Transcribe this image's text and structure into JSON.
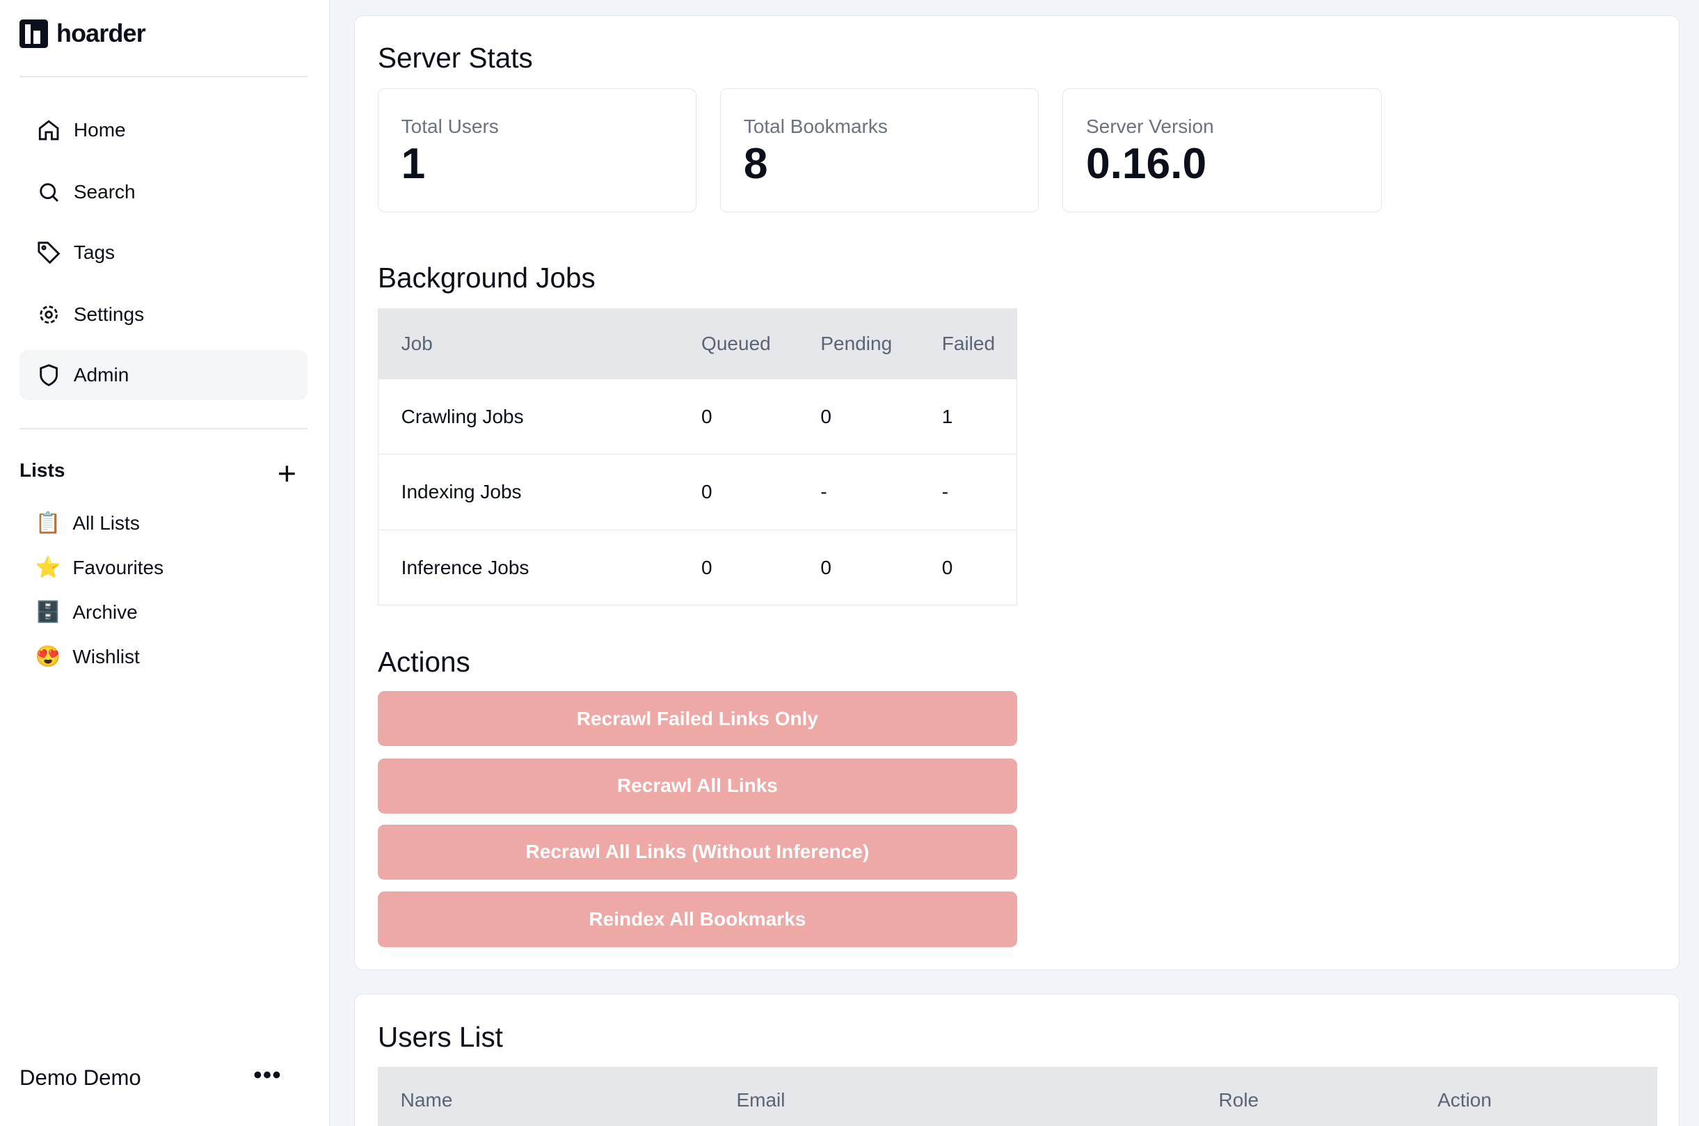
{
  "app": {
    "name": "hoarder"
  },
  "sidebar": {
    "items": [
      {
        "label": "Home",
        "icon": "home-icon"
      },
      {
        "label": "Search",
        "icon": "search-icon"
      },
      {
        "label": "Tags",
        "icon": "tag-icon"
      },
      {
        "label": "Settings",
        "icon": "gear-icon"
      },
      {
        "label": "Admin",
        "icon": "shield-icon",
        "active": true
      }
    ],
    "lists_title": "Lists",
    "add_icon": "plus-icon",
    "lists": [
      {
        "label": "All Lists",
        "emoji": "📋"
      },
      {
        "label": "Favourites",
        "emoji": "⭐"
      },
      {
        "label": "Archive",
        "emoji": "🗄️"
      },
      {
        "label": "Wishlist",
        "emoji": "😍"
      }
    ],
    "user": "Demo Demo",
    "menu": "•••"
  },
  "server_stats": {
    "title": "Server Stats",
    "stats": [
      {
        "label": "Total Users",
        "value": "1"
      },
      {
        "label": "Total Bookmarks",
        "value": "8"
      },
      {
        "label": "Server Version",
        "value": "0.16.0"
      }
    ]
  },
  "jobs": {
    "title": "Background Jobs",
    "headers": [
      "Job",
      "Queued",
      "Pending",
      "Failed"
    ],
    "rows": [
      [
        "Crawling Jobs",
        "0",
        "0",
        "1"
      ],
      [
        "Indexing Jobs",
        "0",
        "-",
        "-"
      ],
      [
        "Inference Jobs",
        "0",
        "0",
        "0"
      ]
    ]
  },
  "actions": {
    "title": "Actions",
    "button_color": "#eea8a6",
    "buttons": [
      "Recrawl Failed Links Only",
      "Recrawl All Links",
      "Recrawl All Links (Without Inference)",
      "Reindex All Bookmarks"
    ]
  },
  "users": {
    "title": "Users List",
    "headers": [
      "Name",
      "Email",
      "Role",
      "Action"
    ]
  }
}
